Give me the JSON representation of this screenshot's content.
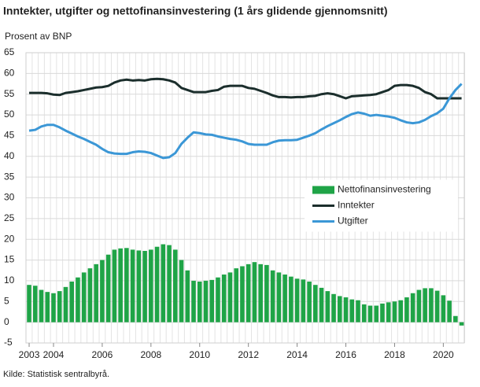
{
  "chart_data": {
    "type": "bar-line",
    "title": "Inntekter, utgifter og nettofinansinvestering (1 års glidende gjennomsnitt)",
    "y_label": "Prosent  av BNP",
    "source": "Kilde: Statistisk sentralbyrå.",
    "x": [
      2003,
      2003.25,
      2003.5,
      2003.75,
      2004,
      2004.25,
      2004.5,
      2004.75,
      2005,
      2005.25,
      2005.5,
      2005.75,
      2006,
      2006.25,
      2006.5,
      2006.75,
      2007,
      2007.25,
      2007.5,
      2007.75,
      2008,
      2008.25,
      2008.5,
      2008.75,
      2009,
      2009.25,
      2009.5,
      2009.75,
      2010,
      2010.25,
      2010.5,
      2010.75,
      2011,
      2011.25,
      2011.5,
      2011.75,
      2012,
      2012.25,
      2012.5,
      2012.75,
      2013,
      2013.25,
      2013.5,
      2013.75,
      2014,
      2014.25,
      2014.5,
      2014.75,
      2015,
      2015.25,
      2015.5,
      2015.75,
      2016,
      2016.25,
      2016.5,
      2016.75,
      2017,
      2017.25,
      2017.5,
      2017.75,
      2018,
      2018.25,
      2018.5,
      2018.75,
      2019,
      2019.25,
      2019.5,
      2019.75,
      2020,
      2020.25,
      2020.5,
      2020.75
    ],
    "xlim": [
      2002.87,
      2020.86
    ],
    "xticks": [
      2003,
      2004,
      2006,
      2008,
      2010,
      2012,
      2014,
      2016,
      2018,
      2020
    ],
    "ylim": [
      -5,
      65
    ],
    "yticks": [
      -5,
      0,
      5,
      10,
      15,
      20,
      25,
      30,
      35,
      40,
      45,
      50,
      55,
      60,
      65
    ],
    "grid": true,
    "legend": "center right",
    "series": [
      {
        "name": "Nettofinansinvestering",
        "kind": "bar",
        "color": "#1fa447",
        "values": [
          9.0,
          8.8,
          7.8,
          7.3,
          7.0,
          7.5,
          8.5,
          9.8,
          10.8,
          12.0,
          13.0,
          14.0,
          15.0,
          16.3,
          17.5,
          17.8,
          17.9,
          17.5,
          17.3,
          17.2,
          17.5,
          18.2,
          18.8,
          18.6,
          17.5,
          15.0,
          12.5,
          10.0,
          9.8,
          10.0,
          10.2,
          10.8,
          11.5,
          12.0,
          13.0,
          13.5,
          14.0,
          14.5,
          14.0,
          13.8,
          12.5,
          12.0,
          11.5,
          11.0,
          10.5,
          10.3,
          9.8,
          9.0,
          8.3,
          7.5,
          6.8,
          6.3,
          6.0,
          5.5,
          5.3,
          4.3,
          4.0,
          4.0,
          4.5,
          4.8,
          5.0,
          5.3,
          6.0,
          7.0,
          7.8,
          8.2,
          8.2,
          7.6,
          6.5,
          5.2,
          1.5,
          -0.8
        ]
      },
      {
        "name": "Inntekter",
        "kind": "line",
        "color": "#1b2e2c",
        "values": [
          55.3,
          55.3,
          55.3,
          55.2,
          54.9,
          54.8,
          55.3,
          55.5,
          55.7,
          56.0,
          56.3,
          56.6,
          56.7,
          57.0,
          57.8,
          58.3,
          58.5,
          58.3,
          58.4,
          58.3,
          58.6,
          58.7,
          58.6,
          58.3,
          57.8,
          56.5,
          56.0,
          55.5,
          55.5,
          55.5,
          55.8,
          56.0,
          56.8,
          57.0,
          57.0,
          57.0,
          56.5,
          56.3,
          55.8,
          55.3,
          54.7,
          54.3,
          54.3,
          54.2,
          54.3,
          54.3,
          54.5,
          54.6,
          55.0,
          55.2,
          55.0,
          54.5,
          54.0,
          54.5,
          54.6,
          54.7,
          54.8,
          55.0,
          55.5,
          56.0,
          57.0,
          57.2,
          57.2,
          57.0,
          56.5,
          55.5,
          55.0,
          54.0,
          54.0,
          54.0,
          54.0,
          54.0
        ]
      },
      {
        "name": "Utgifter",
        "kind": "line",
        "color": "#3b97d6",
        "values": [
          46.2,
          46.4,
          47.2,
          47.6,
          47.6,
          47.0,
          46.2,
          45.5,
          44.8,
          44.2,
          43.5,
          42.8,
          41.8,
          41.0,
          40.7,
          40.6,
          40.6,
          41.0,
          41.2,
          41.1,
          40.8,
          40.2,
          39.6,
          39.8,
          40.8,
          43.0,
          44.5,
          45.8,
          45.6,
          45.3,
          45.2,
          44.8,
          44.5,
          44.2,
          44.0,
          43.6,
          43.0,
          42.8,
          42.8,
          42.8,
          43.4,
          43.8,
          43.9,
          43.9,
          44.0,
          44.5,
          45.0,
          45.6,
          46.5,
          47.3,
          48.0,
          48.7,
          49.5,
          50.2,
          50.6,
          50.3,
          49.8,
          50.0,
          49.8,
          49.6,
          49.3,
          48.7,
          48.2,
          48.0,
          48.2,
          48.8,
          49.7,
          50.4,
          51.5,
          54.0,
          56.0,
          57.5
        ]
      }
    ]
  }
}
